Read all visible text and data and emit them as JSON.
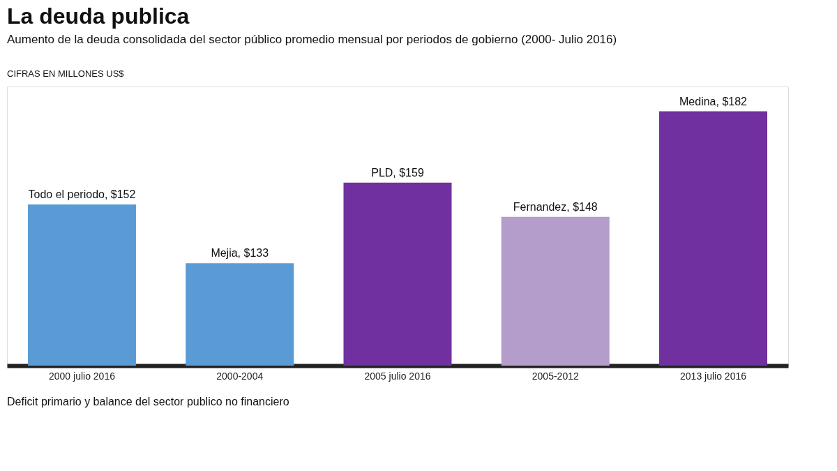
{
  "chart_data": {
    "type": "bar",
    "title": "La deuda publica",
    "subtitle": "Aumento de la deuda consolidada del sector público promedio mensual por periodos de gobierno (2000- Julio 2016)",
    "annotations": [
      "CIFRAS EN MILLONES US$",
      "Deficit primario y balance del sector publico no financiero"
    ],
    "categories": [
      "2000 julio 2016",
      "2000-2004",
      "2005 julio 2016",
      "2005-2012",
      "2013 julio 2016"
    ],
    "values": [
      152,
      133,
      159,
      148,
      182
    ],
    "colors": [
      "#5b9bd5",
      "#5b9bd5",
      "#7030a0",
      "#b49ccb",
      "#7030a0"
    ],
    "value_labels": [
      "Todo el periodo, $152",
      "Mejia, $133",
      "PLD, $159",
      "Fernandez, $148",
      "Medina, $182"
    ],
    "ylim": [
      100,
      190
    ],
    "grid": false
  }
}
